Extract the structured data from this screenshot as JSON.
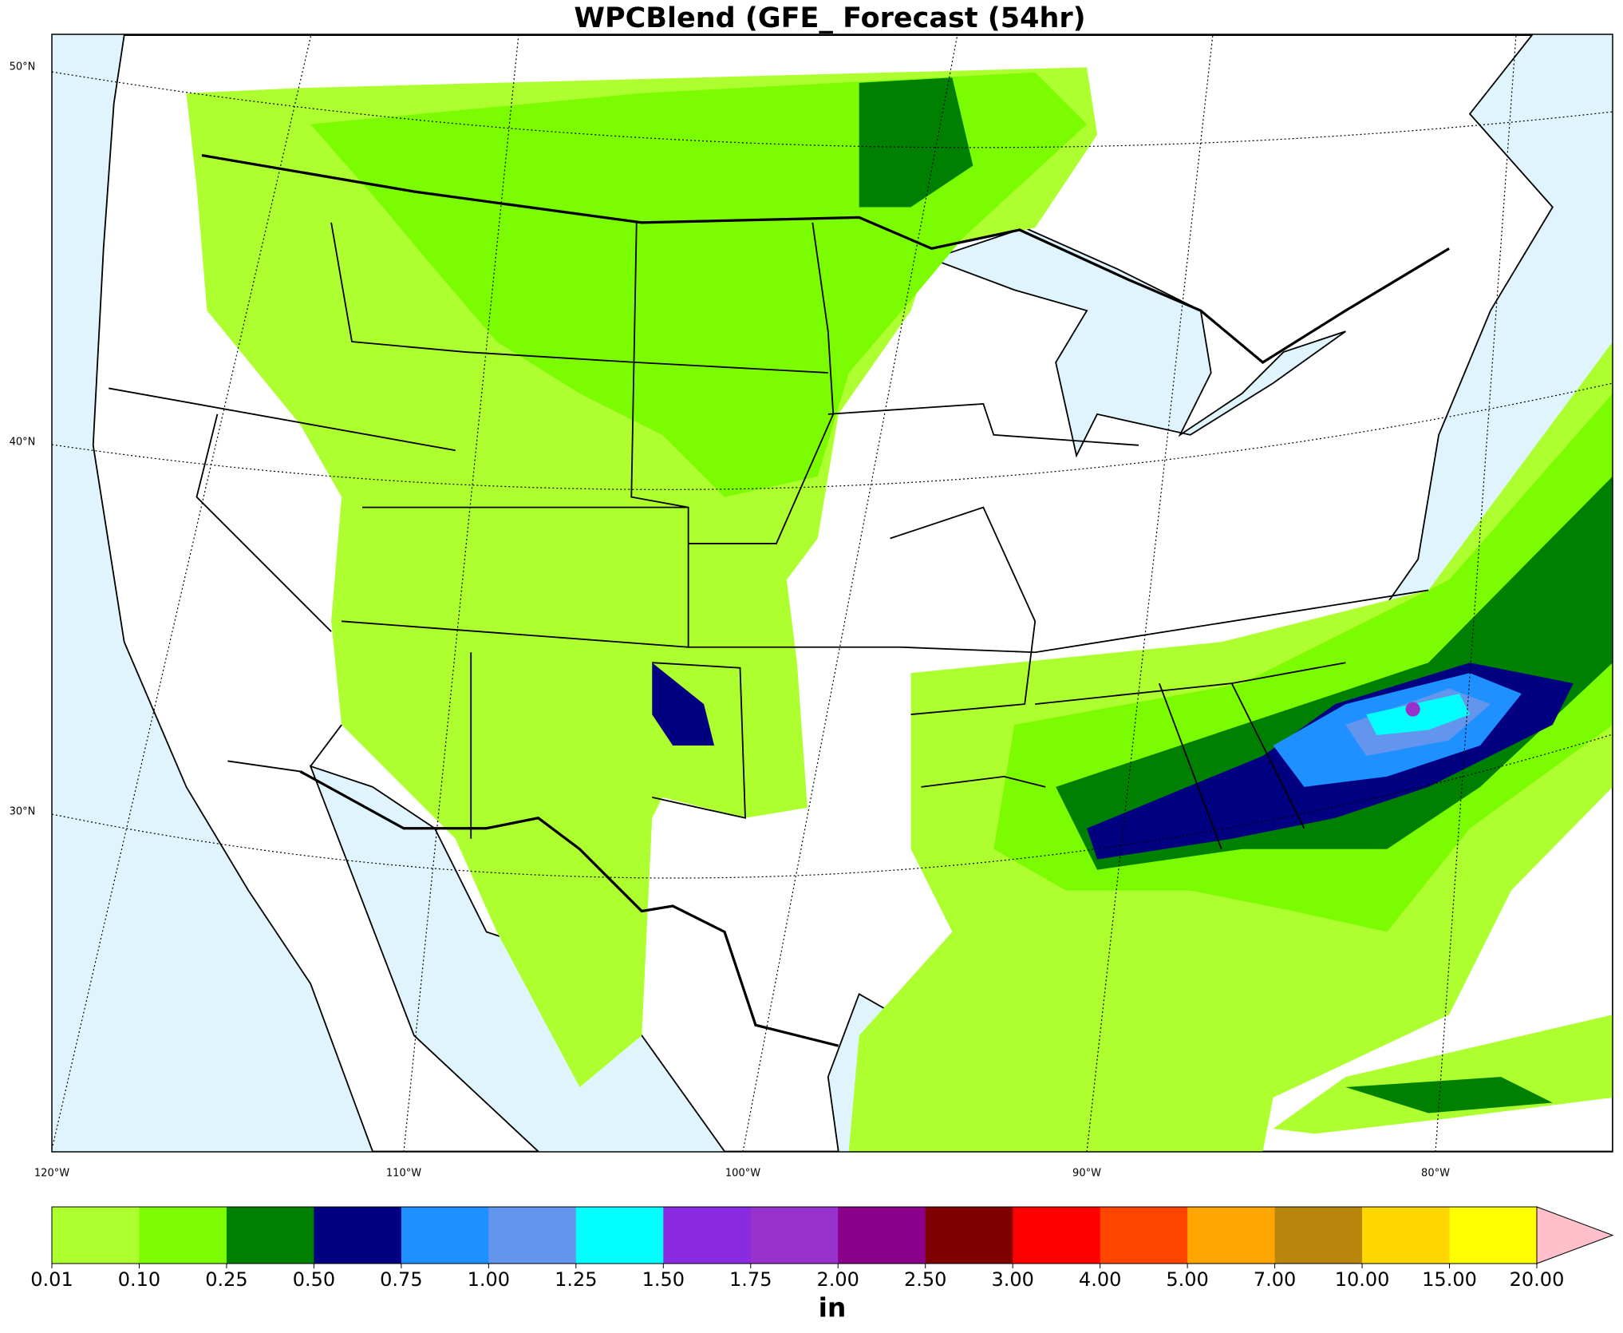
{
  "title": "WPCBlend (GFE_ Forecast (54hr)",
  "map": {
    "lat_labels": [
      "50°N",
      "40°N",
      "30°N"
    ],
    "lon_labels": [
      "120°W",
      "110°W",
      "100°W",
      "90°W",
      "80°W"
    ]
  },
  "colorbar": {
    "label": "in",
    "ticks": [
      "0.01",
      "0.10",
      "0.25",
      "0.50",
      "0.75",
      "1.00",
      "1.25",
      "1.50",
      "1.75",
      "2.00",
      "2.50",
      "3.00",
      "4.00",
      "5.00",
      "7.00",
      "10.00",
      "15.00",
      "20.00"
    ],
    "colors": [
      "#adff2f",
      "#7cfc00",
      "#008000",
      "#000080",
      "#1e90ff",
      "#6495ed",
      "#00ffff",
      "#8a2be2",
      "#9932cc",
      "#8b008b",
      "#800000",
      "#ff0000",
      "#ff4500",
      "#ffa500",
      "#b8860b",
      "#ffd700",
      "#ffff00"
    ],
    "extend_color": "#ffc0cb"
  }
}
